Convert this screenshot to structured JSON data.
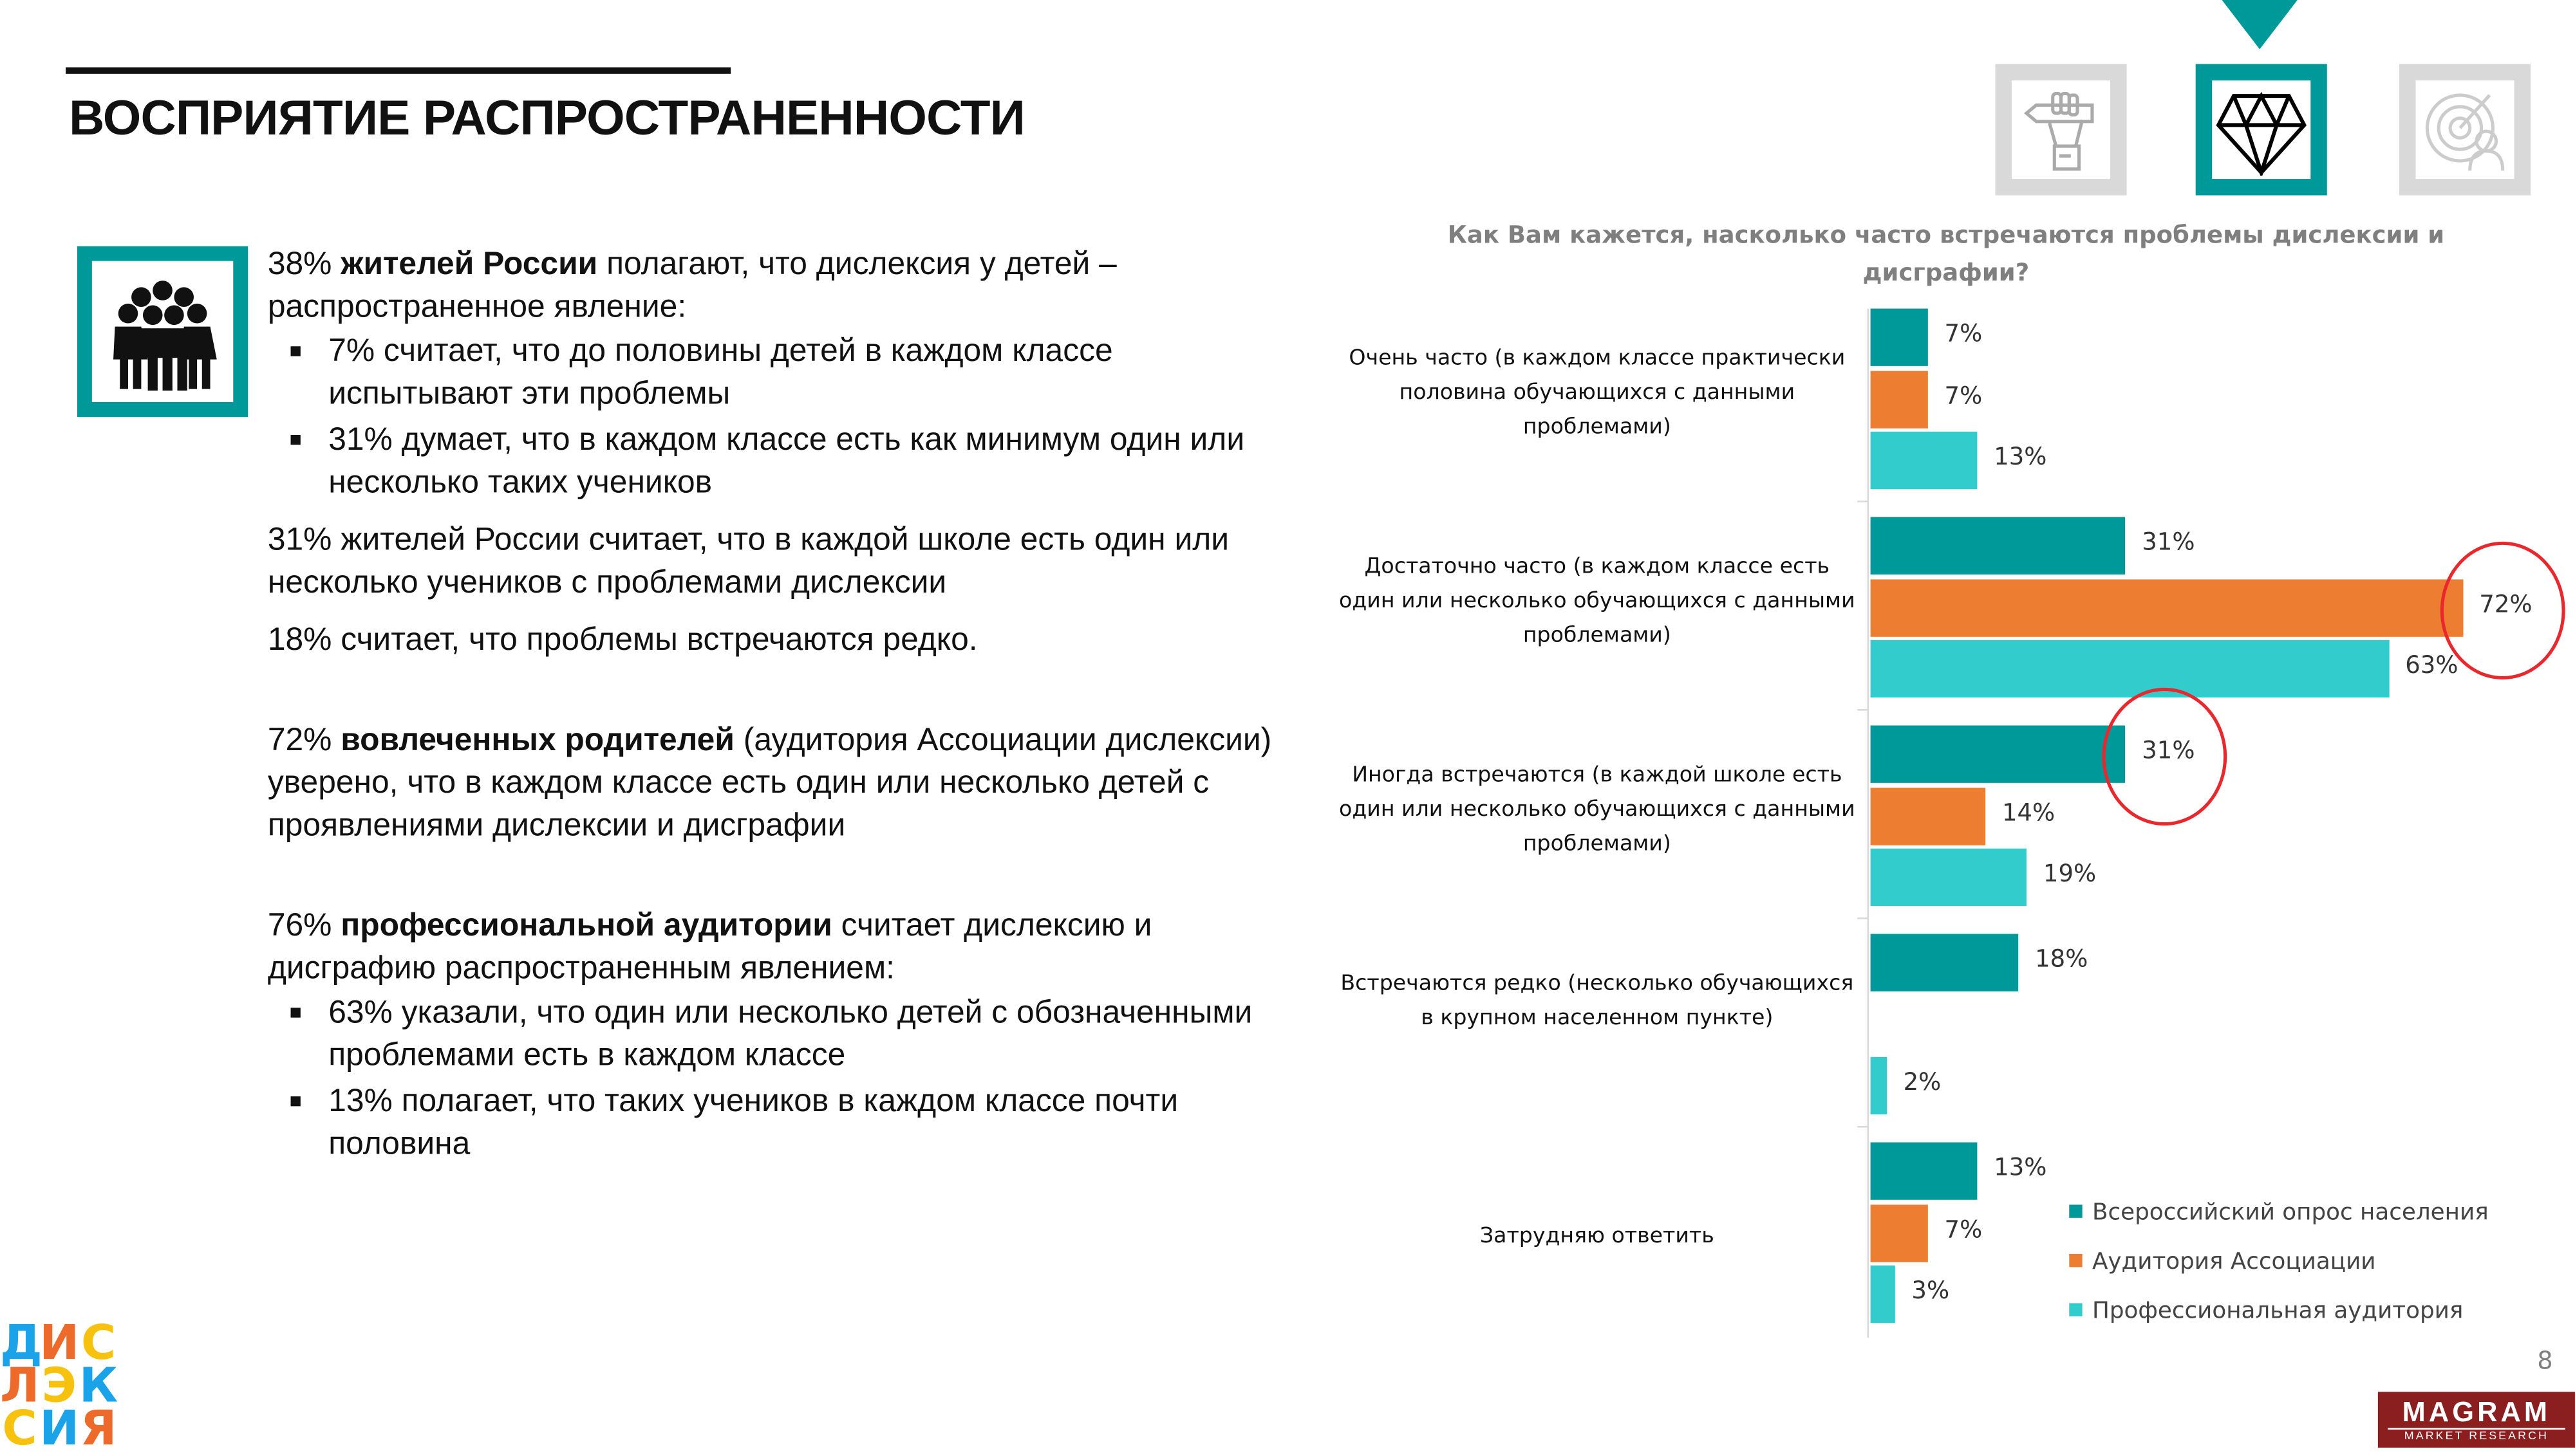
{
  "header": {
    "title": "ВОСПРИЯТИЕ РАСПРОСТРАНЕННОСТИ"
  },
  "nav": {
    "icons": [
      "fist-pencil-icon",
      "diamond-icon",
      "target-person-icon"
    ],
    "active": 1
  },
  "text": {
    "p1": [
      {
        "t": "38% ",
        "b": false
      },
      {
        "t": "жителей России",
        "b": true
      },
      {
        "t": " полагают, что дислексия у детей – распространенное явление:",
        "b": false
      }
    ],
    "p1_bullets": [
      "7% считает, что до половины детей в каждом классе испытывают эти проблемы",
      "31% думает, что в каждом классе есть как минимум один или несколько таких учеников"
    ],
    "p2": "31% жителей России считает, что в каждой школе есть один или несколько учеников с проблемами дислексии",
    "p3": "18% считает, что проблемы встречаются редко.",
    "p4": [
      {
        "t": "72% ",
        "b": false
      },
      {
        "t": "вовлеченных родителей",
        "b": true
      },
      {
        "t": " (аудитория Ассоциации дислексии) уверено, что в каждом классе есть один или несколько детей с проявлениями дислексии и дисграфии",
        "b": false
      }
    ],
    "p5": [
      {
        "t": "76% ",
        "b": false
      },
      {
        "t": "профессиональной  аудитории",
        "b": true
      },
      {
        "t": " считает дислексию и дисграфию распространенным явлением:",
        "b": false
      }
    ],
    "p5_bullets": [
      "63% указали, что один или несколько детей с обозначенными проблемами есть в каждом классе",
      "13% полагает, что таких учеников в каждом классе почти половина"
    ]
  },
  "chart_data": {
    "type": "bar",
    "orientation": "horizontal",
    "title": "Как Вам кажется, насколько часто встречаются проблемы дислексии и дисграфии?",
    "categories": [
      "Очень часто (в каждом классе практически половина обучающихся с данными проблемами)",
      "Достаточно часто (в каждом классе есть один или несколько обучающихся с данными проблемами)",
      "Иногда встречаются (в каждой школе есть один или несколько обучающихся с данными проблемами)",
      "Встречаются редко (несколько обучающихся в крупном населенном пункте)",
      "Затрудняю ответить"
    ],
    "series": [
      {
        "name": "Всероссийский опрос населения",
        "color": "#009999",
        "values": [
          7,
          31,
          31,
          18,
          13
        ]
      },
      {
        "name": "Аудитория Ассоциации",
        "color": "#ed7d31",
        "values": [
          7,
          72,
          14,
          null,
          7
        ]
      },
      {
        "name": "Профессиональная аудитория",
        "color": "#33cccc",
        "values": [
          13,
          63,
          19,
          2,
          3
        ]
      }
    ],
    "unit": "%",
    "legend": "bottom-right",
    "highlighted": [
      {
        "series": 1,
        "category": 1
      },
      {
        "series": 0,
        "category": 2
      }
    ],
    "grid": false
  },
  "footer": {
    "page": "8",
    "brand": "MAGRAM",
    "brand_sub": "MARKET RESEARCH",
    "logo_text": "ДИСЛЕКСИЯ"
  }
}
